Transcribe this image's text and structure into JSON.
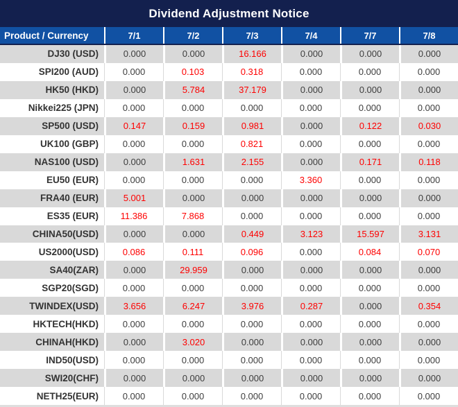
{
  "title": "Dividend Adjustment Notice",
  "colors": {
    "title_bar_navy": "#13204E",
    "header_blue": "#1151A3",
    "stripe_gray": "#D9D9D9",
    "value_red": "#FE0000",
    "text_dark": "#3D3D3D"
  },
  "chart_data": {
    "type": "table",
    "title": "Dividend Adjustment Notice",
    "product_header": "Product / Currency",
    "date_columns": [
      "7/1",
      "7/2",
      "7/3",
      "7/4",
      "7/7",
      "7/8"
    ],
    "value_color_rule": "non-zero values rendered in red, zeros in dark gray",
    "rows": [
      {
        "product": "DJ30 (USD)",
        "values": [
          "0.000",
          "0.000",
          "16.166",
          "0.000",
          "0.000",
          "0.000"
        ]
      },
      {
        "product": "SPI200 (AUD)",
        "values": [
          "0.000",
          "0.103",
          "0.318",
          "0.000",
          "0.000",
          "0.000"
        ]
      },
      {
        "product": "HK50 (HKD)",
        "values": [
          "0.000",
          "5.784",
          "37.179",
          "0.000",
          "0.000",
          "0.000"
        ]
      },
      {
        "product": "Nikkei225 (JPN)",
        "values": [
          "0.000",
          "0.000",
          "0.000",
          "0.000",
          "0.000",
          "0.000"
        ]
      },
      {
        "product": "SP500 (USD)",
        "values": [
          "0.147",
          "0.159",
          "0.981",
          "0.000",
          "0.122",
          "0.030"
        ]
      },
      {
        "product": "UK100 (GBP)",
        "values": [
          "0.000",
          "0.000",
          "0.821",
          "0.000",
          "0.000",
          "0.000"
        ]
      },
      {
        "product": "NAS100 (USD)",
        "values": [
          "0.000",
          "1.631",
          "2.155",
          "0.000",
          "0.171",
          "0.118"
        ]
      },
      {
        "product": "EU50 (EUR)",
        "values": [
          "0.000",
          "0.000",
          "0.000",
          "3.360",
          "0.000",
          "0.000"
        ]
      },
      {
        "product": "FRA40 (EUR)",
        "values": [
          "5.001",
          "0.000",
          "0.000",
          "0.000",
          "0.000",
          "0.000"
        ]
      },
      {
        "product": "ES35 (EUR)",
        "values": [
          "11.386",
          "7.868",
          "0.000",
          "0.000",
          "0.000",
          "0.000"
        ]
      },
      {
        "product": "CHINA50(USD)",
        "values": [
          "0.000",
          "0.000",
          "0.449",
          "3.123",
          "15.597",
          "3.131"
        ]
      },
      {
        "product": "US2000(USD)",
        "values": [
          "0.086",
          "0.111",
          "0.096",
          "0.000",
          "0.084",
          "0.070"
        ]
      },
      {
        "product": "SA40(ZAR)",
        "values": [
          "0.000",
          "29.959",
          "0.000",
          "0.000",
          "0.000",
          "0.000"
        ]
      },
      {
        "product": "SGP20(SGD)",
        "values": [
          "0.000",
          "0.000",
          "0.000",
          "0.000",
          "0.000",
          "0.000"
        ]
      },
      {
        "product": "TWINDEX(USD)",
        "values": [
          "3.656",
          "6.247",
          "3.976",
          "0.287",
          "0.000",
          "0.354"
        ]
      },
      {
        "product": "HKTECH(HKD)",
        "values": [
          "0.000",
          "0.000",
          "0.000",
          "0.000",
          "0.000",
          "0.000"
        ]
      },
      {
        "product": "CHINAH(HKD)",
        "values": [
          "0.000",
          "3.020",
          "0.000",
          "0.000",
          "0.000",
          "0.000"
        ]
      },
      {
        "product": "IND50(USD)",
        "values": [
          "0.000",
          "0.000",
          "0.000",
          "0.000",
          "0.000",
          "0.000"
        ]
      },
      {
        "product": "SWI20(CHF)",
        "values": [
          "0.000",
          "0.000",
          "0.000",
          "0.000",
          "0.000",
          "0.000"
        ]
      },
      {
        "product": "NETH25(EUR)",
        "values": [
          "0.000",
          "0.000",
          "0.000",
          "0.000",
          "0.000",
          "0.000"
        ]
      }
    ]
  }
}
